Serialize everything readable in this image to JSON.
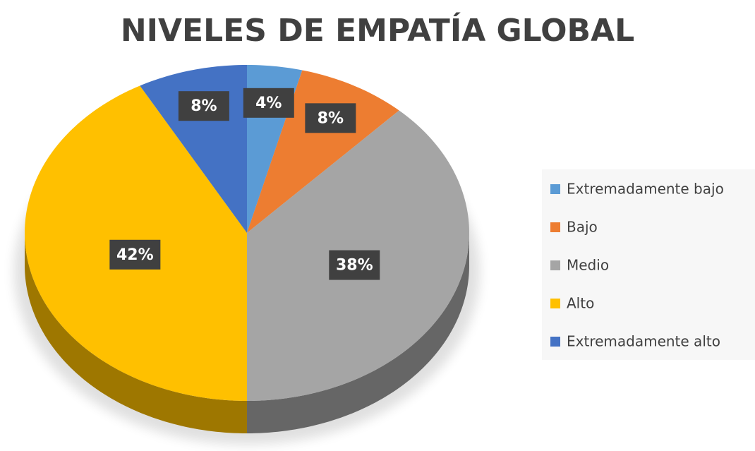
{
  "chart_data": {
    "type": "pie",
    "title": "NIVELES DE EMPATÍA GLOBAL",
    "categories": [
      "Extremadamente bajo",
      "Bajo",
      "Medio",
      "Alto",
      "Extremadamente alto"
    ],
    "values": [
      4,
      8,
      38,
      42,
      8
    ],
    "value_labels": [
      "4%",
      "8%",
      "38%",
      "42%",
      "8%"
    ],
    "colors": [
      "#5b9bd5",
      "#ed7d31",
      "#a5a5a5",
      "#ffc000",
      "#4472c4"
    ],
    "legend": "right"
  }
}
